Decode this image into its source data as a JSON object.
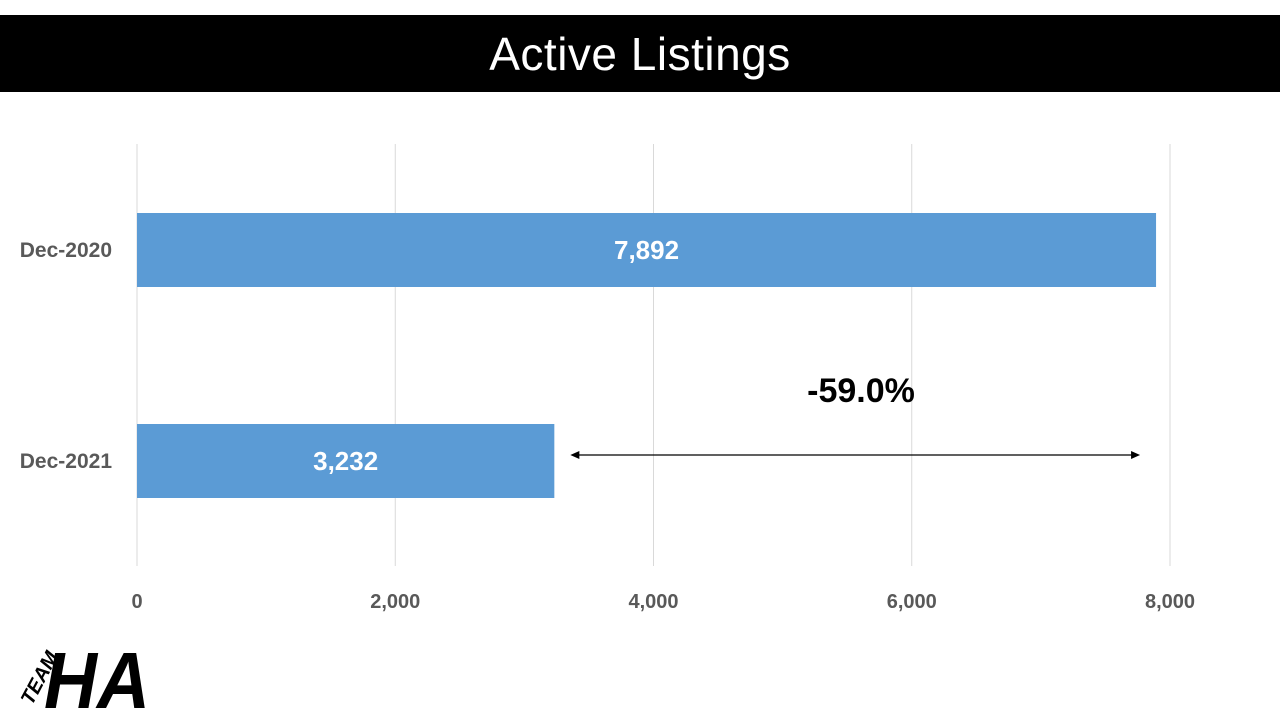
{
  "header": {
    "title": "Active Listings"
  },
  "chart_data": {
    "type": "bar",
    "orientation": "horizontal",
    "title": "Active Listings",
    "categories": [
      "Dec-2020",
      "Dec-2021"
    ],
    "values": [
      7892,
      3232
    ],
    "data_labels": [
      "7,892",
      "3,232"
    ],
    "xlabel": "",
    "ylabel": "",
    "xlim": [
      0,
      8000
    ],
    "x_ticks": [
      0,
      2000,
      4000,
      6000,
      8000
    ],
    "x_tick_labels": [
      "0",
      "2,000",
      "4,000",
      "6,000",
      "8,000"
    ],
    "grid": true,
    "legend": "none",
    "bar_color": "#5b9bd5",
    "annotation": {
      "text": "-59.0%",
      "from_value": 3232,
      "to_value": 7892
    }
  },
  "logo": {
    "text_small": "TEAM",
    "text_large": "HA"
  }
}
